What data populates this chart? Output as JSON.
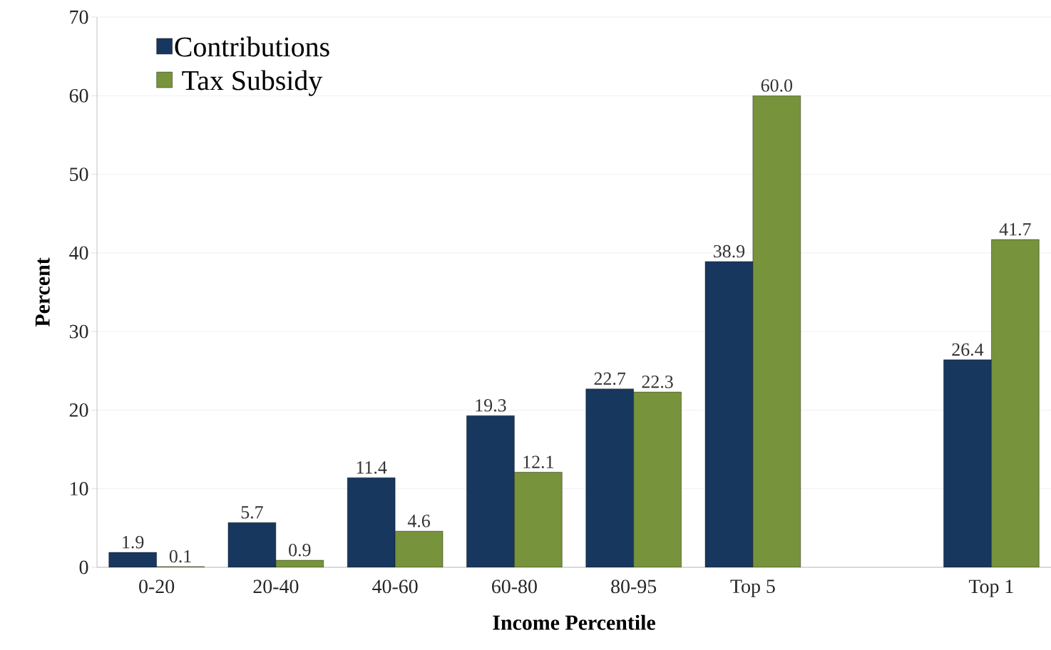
{
  "chart_data": {
    "type": "bar",
    "xlabel": "Income Percentile",
    "ylabel": "Percent",
    "categories": [
      "0-20",
      "20-40",
      "40-60",
      "60-80",
      "80-95",
      "Top 5",
      null,
      "Top 1"
    ],
    "series": [
      {
        "name": "Contributions",
        "color": "#17375e",
        "values": [
          1.9,
          5.7,
          11.4,
          19.3,
          22.7,
          38.9,
          null,
          26.4
        ],
        "value_labels": [
          "1.9",
          "5.7",
          "11.4",
          "19.3",
          "22.7",
          "38.9",
          null,
          "26.4"
        ]
      },
      {
        "name": "Tax Subsidy",
        "color": "#77933c",
        "values": [
          0.1,
          0.9,
          4.6,
          12.1,
          22.3,
          60.0,
          null,
          41.7
        ],
        "value_labels": [
          "0.1",
          "0.9",
          "4.6",
          "12.1",
          "22.3",
          "60.0",
          null,
          "41.7"
        ]
      }
    ],
    "ylim": [
      0,
      70
    ],
    "yticks": [
      0,
      10,
      20,
      30,
      40,
      50,
      60,
      70
    ],
    "grid": "y",
    "legend": "top left"
  }
}
